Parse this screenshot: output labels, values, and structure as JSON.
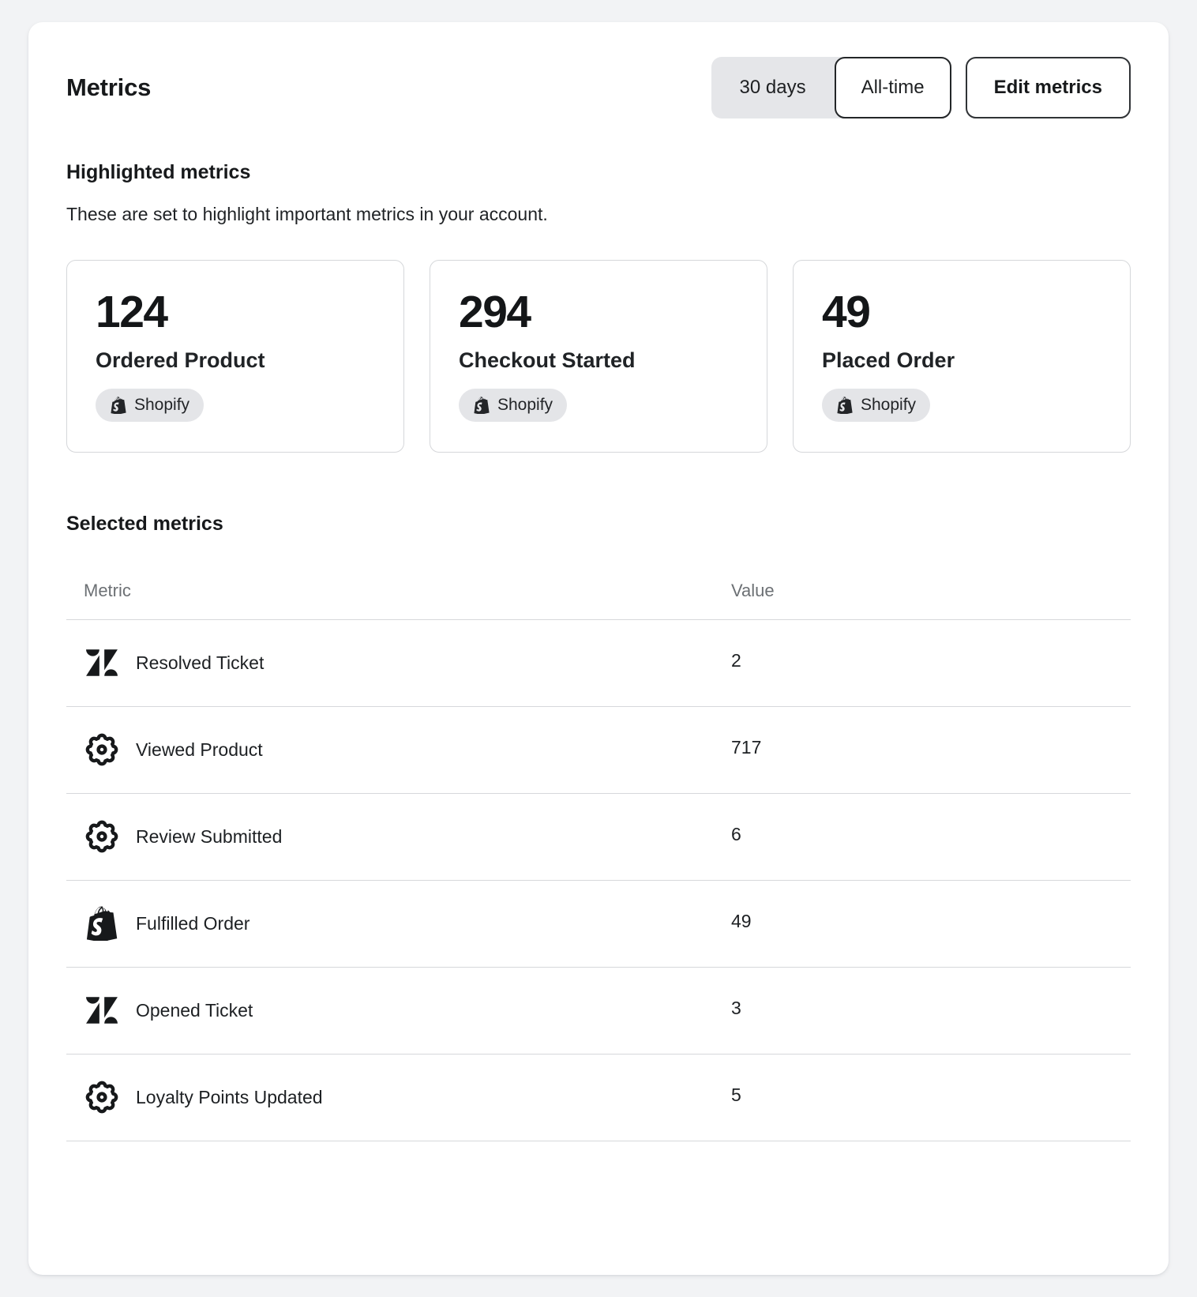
{
  "header": {
    "title": "Metrics",
    "time_toggle": {
      "options": [
        {
          "label": "30 days",
          "selected": false
        },
        {
          "label": "All-time",
          "selected": true
        }
      ]
    },
    "edit_button_label": "Edit metrics"
  },
  "highlighted": {
    "heading": "Highlighted metrics",
    "description": "These are set to highlight important metrics in your account.",
    "cards": [
      {
        "value": "124",
        "label": "Ordered Product",
        "source": "Shopify",
        "source_icon": "shopify-icon"
      },
      {
        "value": "294",
        "label": "Checkout Started",
        "source": "Shopify",
        "source_icon": "shopify-icon"
      },
      {
        "value": "49",
        "label": "Placed Order",
        "source": "Shopify",
        "source_icon": "shopify-icon"
      }
    ]
  },
  "selected": {
    "heading": "Selected metrics",
    "table": {
      "columns": [
        "Metric",
        "Value"
      ],
      "rows": [
        {
          "icon": "zendesk-icon",
          "metric": "Resolved Ticket",
          "value": "2"
        },
        {
          "icon": "gear-icon",
          "metric": "Viewed Product",
          "value": "717"
        },
        {
          "icon": "gear-icon",
          "metric": "Review Submitted",
          "value": "6"
        },
        {
          "icon": "shopify-icon",
          "metric": "Fulfilled Order",
          "value": "49"
        },
        {
          "icon": "zendesk-icon",
          "metric": "Opened Ticket",
          "value": "3"
        },
        {
          "icon": "gear-icon",
          "metric": "Loyalty Points Updated",
          "value": "5"
        }
      ]
    }
  },
  "colors": {
    "page_background": "#f2f3f5",
    "card_background": "#ffffff",
    "text_primary": "#17191b",
    "text_muted": "#6c7074",
    "divider": "#d6d8db",
    "pill_background": "#e4e5e8"
  }
}
